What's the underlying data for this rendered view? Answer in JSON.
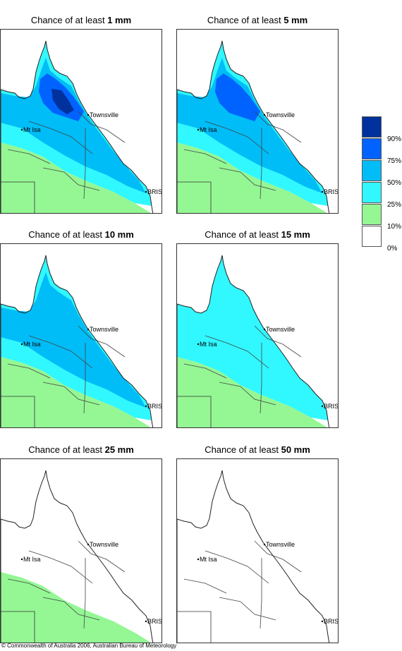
{
  "panels": [
    {
      "title_prefix": "Chance of at least ",
      "title_amount": "1 mm",
      "level": 5
    },
    {
      "title_prefix": "Chance of at least ",
      "title_amount": "5 mm",
      "level": 4
    },
    {
      "title_prefix": "Chance of at least ",
      "title_amount": "10 mm",
      "level": 3
    },
    {
      "title_prefix": "Chance of at least ",
      "title_amount": "15 mm",
      "level": 2
    },
    {
      "title_prefix": "Chance of at least ",
      "title_amount": "25 mm",
      "level": 1
    },
    {
      "title_prefix": "Chance of at least ",
      "title_amount": "50 mm",
      "level": 0
    }
  ],
  "map_labels": {
    "townsville": "Townsville",
    "mt_isa": "Mt Isa",
    "brisbane": "BRIS"
  },
  "legend": {
    "ticks": [
      "90%",
      "75%",
      "50%",
      "25%",
      "10%",
      "0%"
    ],
    "colors": [
      "#00319c",
      "#0063ff",
      "#00bdf7",
      "#31f7ff",
      "#94f794",
      "#ffffff"
    ]
  },
  "copyright": "© Commonwealth of Australia 2006, Australian Bureau of Meteorology"
}
